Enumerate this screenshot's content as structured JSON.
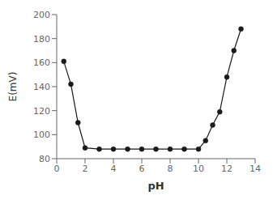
{
  "chart_data": {
    "type": "line",
    "x": [
      0.5,
      1.0,
      1.5,
      2.0,
      3.0,
      4.0,
      5.0,
      6.0,
      7.0,
      8.0,
      9.0,
      10.0,
      10.5,
      11.0,
      11.5,
      12.0,
      12.5,
      13.0
    ],
    "values": [
      161,
      142,
      110,
      89,
      88,
      88,
      88,
      88,
      88,
      88,
      88,
      88,
      95,
      108,
      119,
      148,
      170,
      188
    ],
    "xlabel": "pH",
    "ylabel": "E(mV)",
    "xlim": [
      0,
      14
    ],
    "ylim": [
      80,
      200
    ],
    "xticks": [
      0,
      2,
      4,
      6,
      8,
      10,
      12,
      14
    ],
    "yticks": [
      80,
      100,
      120,
      140,
      160,
      180,
      200
    ],
    "color": "#1a1a1a",
    "marker": "o"
  }
}
